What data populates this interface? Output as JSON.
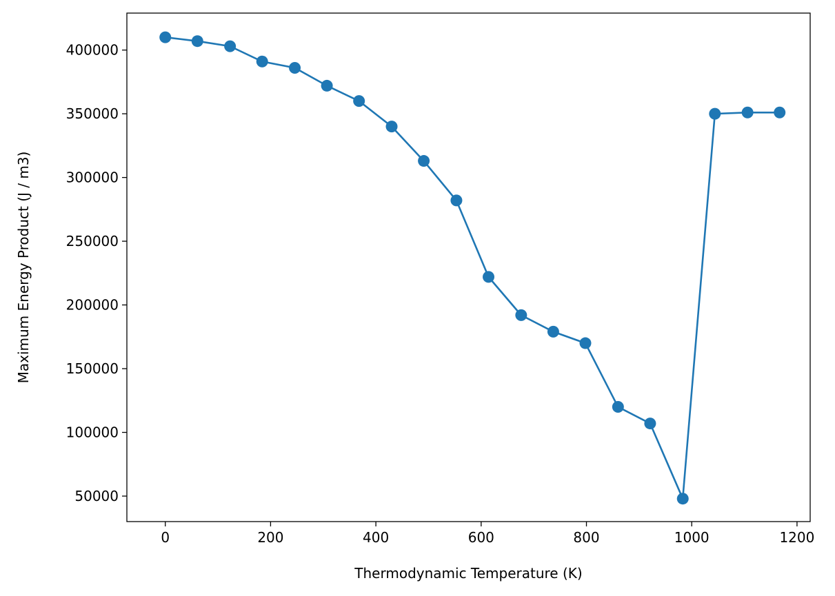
{
  "chart_data": {
    "type": "line",
    "xlabel": "Thermodynamic Temperature (K)",
    "ylabel": "Maximum Energy Product (J / m3)",
    "xlim": [
      -73,
      1225
    ],
    "ylim": [
      30000,
      429000
    ],
    "xticks": [
      0,
      200,
      400,
      600,
      800,
      1000,
      1200
    ],
    "yticks": [
      50000,
      100000,
      150000,
      200000,
      250000,
      300000,
      350000,
      400000
    ],
    "grid": false,
    "color": "#1f77b4",
    "series": [
      {
        "x": [
          0,
          61,
          123,
          184,
          246,
          307,
          368,
          430,
          491,
          553,
          614,
          676,
          737,
          798,
          860,
          921,
          983,
          1044,
          1106,
          1167
        ],
        "y": [
          410000,
          407000,
          403000,
          391000,
          386000,
          372000,
          360000,
          340000,
          313000,
          282000,
          222000,
          192000,
          179000,
          170000,
          120000,
          107000,
          48000,
          350000,
          351000,
          351000
        ]
      }
    ]
  }
}
